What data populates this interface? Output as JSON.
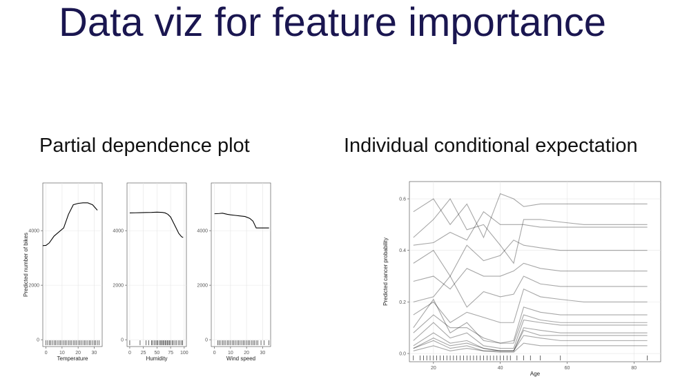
{
  "title": "Data viz for feature importance",
  "sections": [
    "Partial dependence plot",
    "Individual conditional expectation"
  ],
  "chart_data": [
    {
      "type": "line",
      "xlabel": "Temperature",
      "ylabel": "Predicted number of bikes",
      "color": "#000000",
      "grid": true,
      "x": [
        -2,
        0,
        2,
        5,
        8,
        11,
        14,
        17,
        20,
        23,
        26,
        29,
        32
      ],
      "values": [
        3450,
        3460,
        3550,
        3800,
        3950,
        4100,
        4600,
        4950,
        5000,
        5020,
        5020,
        4950,
        4750
      ],
      "rug": [
        0,
        1,
        2,
        3,
        4,
        5,
        6,
        7,
        8,
        9,
        10,
        11,
        12,
        13,
        14,
        15,
        16,
        17,
        18,
        19,
        20,
        21,
        22,
        23,
        24,
        25,
        26,
        27,
        28,
        29,
        30,
        31,
        32,
        33
      ],
      "xlim": [
        -2,
        35
      ],
      "ylim": [
        -250,
        5750
      ],
      "xticks": [
        0,
        10,
        20,
        30
      ],
      "yticks": [
        0,
        2000,
        4000
      ]
    },
    {
      "type": "line",
      "xlabel": "Humidity",
      "color": "#000000",
      "grid": true,
      "x": [
        0,
        10,
        20,
        30,
        40,
        50,
        60,
        65,
        70,
        75,
        80,
        85,
        90,
        95,
        98
      ],
      "values": [
        4650,
        4655,
        4660,
        4665,
        4670,
        4680,
        4670,
        4650,
        4600,
        4500,
        4300,
        4100,
        3900,
        3780,
        3750
      ],
      "rug": [
        0,
        19,
        30,
        35,
        40,
        42,
        45,
        48,
        50,
        52,
        55,
        57,
        59,
        61,
        63,
        65,
        67,
        69,
        71,
        73,
        75,
        78,
        80,
        83,
        86,
        89,
        92,
        95,
        97
      ],
      "xlim": [
        -5,
        104
      ],
      "ylim": [
        -250,
        5750
      ],
      "xticks": [
        0,
        25,
        50,
        75,
        100
      ],
      "yticks": [
        0,
        2000,
        4000
      ]
    },
    {
      "type": "line",
      "xlabel": "Wind speed",
      "color": "#000000",
      "grid": true,
      "x": [
        0,
        3,
        5,
        8,
        10,
        13,
        16,
        19,
        22,
        24,
        26,
        28,
        30,
        34
      ],
      "values": [
        4620,
        4630,
        4640,
        4600,
        4580,
        4560,
        4540,
        4520,
        4450,
        4350,
        4100,
        4100,
        4100,
        4100
      ],
      "rug": [
        2,
        3,
        4,
        5,
        6,
        7,
        8,
        9,
        10,
        11,
        12,
        13,
        14,
        15,
        16,
        17,
        18,
        19,
        20,
        21,
        22,
        23,
        24,
        25,
        26,
        27,
        29,
        31,
        34
      ],
      "xlim": [
        -2,
        35
      ],
      "ylim": [
        -250,
        5750
      ],
      "xticks": [
        0,
        10,
        20,
        30
      ],
      "yticks": [
        0,
        2000,
        4000
      ]
    },
    {
      "type": "line",
      "xlabel": "Age",
      "ylabel": "Predicted cancer probability",
      "color": "#000000",
      "opacity": 0.35,
      "grid": true,
      "x": [
        14,
        20,
        25,
        30,
        35,
        40,
        44,
        47,
        52,
        58,
        65,
        84
      ],
      "series": [
        {
          "values": [
            0.55,
            0.6,
            0.5,
            0.58,
            0.45,
            0.62,
            0.6,
            0.57,
            0.58,
            0.58,
            0.58,
            0.58
          ]
        },
        {
          "values": [
            0.45,
            0.52,
            0.6,
            0.48,
            0.5,
            0.42,
            0.35,
            0.52,
            0.52,
            0.51,
            0.5,
            0.5
          ]
        },
        {
          "values": [
            0.42,
            0.43,
            0.47,
            0.44,
            0.55,
            0.5,
            0.5,
            0.5,
            0.49,
            0.49,
            0.49,
            0.49
          ]
        },
        {
          "values": [
            0.35,
            0.4,
            0.3,
            0.42,
            0.36,
            0.38,
            0.44,
            0.42,
            0.41,
            0.4,
            0.4,
            0.4
          ]
        },
        {
          "values": [
            0.28,
            0.3,
            0.25,
            0.33,
            0.3,
            0.3,
            0.32,
            0.35,
            0.33,
            0.32,
            0.32,
            0.32
          ]
        },
        {
          "values": [
            0.2,
            0.22,
            0.3,
            0.18,
            0.24,
            0.22,
            0.23,
            0.3,
            0.27,
            0.26,
            0.26,
            0.26
          ]
        },
        {
          "values": [
            0.15,
            0.2,
            0.12,
            0.16,
            0.14,
            0.12,
            0.12,
            0.25,
            0.22,
            0.21,
            0.2,
            0.2
          ]
        },
        {
          "values": [
            0.1,
            0.21,
            0.08,
            0.12,
            0.05,
            0.04,
            0.05,
            0.18,
            0.16,
            0.15,
            0.15,
            0.15
          ]
        },
        {
          "values": [
            0.08,
            0.15,
            0.1,
            0.1,
            0.06,
            0.04,
            0.04,
            0.15,
            0.13,
            0.12,
            0.12,
            0.12
          ]
        },
        {
          "values": [
            0.05,
            0.12,
            0.06,
            0.08,
            0.03,
            0.02,
            0.02,
            0.13,
            0.12,
            0.11,
            0.11,
            0.11
          ]
        },
        {
          "values": [
            0.03,
            0.08,
            0.04,
            0.05,
            0.02,
            0.01,
            0.01,
            0.1,
            0.09,
            0.08,
            0.08,
            0.08
          ]
        },
        {
          "values": [
            0.02,
            0.06,
            0.03,
            0.04,
            0.02,
            0.01,
            0.01,
            0.09,
            0.07,
            0.07,
            0.07,
            0.07
          ]
        },
        {
          "values": [
            0.02,
            0.05,
            0.02,
            0.03,
            0.01,
            0.01,
            0.01,
            0.07,
            0.06,
            0.05,
            0.05,
            0.05
          ]
        },
        {
          "values": [
            0.01,
            0.03,
            0.01,
            0.02,
            0.01,
            0.005,
            0.005,
            0.04,
            0.03,
            0.03,
            0.03,
            0.03
          ]
        }
      ],
      "rug": [
        14,
        16,
        17,
        18,
        19,
        20,
        21,
        22,
        23,
        24,
        25,
        26,
        27,
        28,
        29,
        30,
        31,
        32,
        33,
        34,
        35,
        36,
        37,
        38,
        39,
        40,
        41,
        42,
        43,
        45,
        47,
        49,
        52,
        58,
        84
      ],
      "xlim": [
        12.8,
        88
      ],
      "ylim": [
        -0.032,
        0.667
      ],
      "xticks": [
        20,
        40,
        60,
        80
      ],
      "yticks": [
        {
          "value": 0,
          "label": "0.0"
        },
        0.2,
        0.4,
        0.6
      ]
    }
  ]
}
